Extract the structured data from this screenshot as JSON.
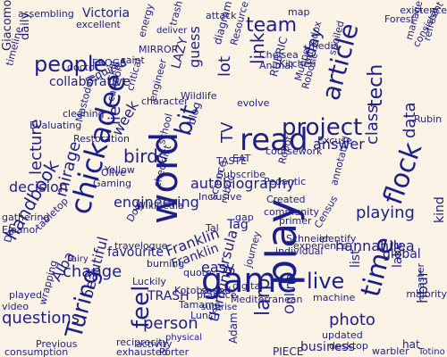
{
  "colors": {
    "background": "#fbf3e6",
    "text": "#1c1f8a"
  },
  "words": [
    "play",
    "game",
    "word",
    "read",
    "project",
    "Turing",
    "people",
    "chickadee",
    "time",
    "team",
    "article",
    "feel",
    "handbook",
    "autobiography",
    "flock",
    "birds",
    "bit",
    "larp",
    "live",
    "questions",
    "engineering",
    "Franklin",
    "change",
    "answer",
    "photo",
    "person",
    "thinking",
    "guess",
    "lot",
    "tech",
    "lecture",
    "mirage",
    "decision",
    "link",
    "week",
    "TV",
    "beautiful",
    "Alba",
    "favourite",
    "lie",
    "data",
    "class",
    "day",
    "playing",
    "easy",
    "Ursula",
    "hannahilea",
    "global",
    "kind",
    "hour",
    "Victoria",
    "Giacomo",
    "daily",
    "collaborative",
    "required",
    "LAZY",
    "lake",
    "Online",
    "business",
    "list",
    "PIECE",
    "TRASH",
    "Adam",
    "hat",
    "Tag",
    "Franklin",
    "assembling",
    "excellent",
    "energy",
    "trash",
    "deliver",
    "attack",
    "Forest",
    "map",
    "existence",
    "consistent",
    "manage",
    "refresh",
    "diagram",
    "science",
    "Chelsea",
    "Animal",
    "Kitchen",
    "Muppet",
    "spoiled",
    "orthodox",
    "Resource",
    "Robotic",
    "Wildlife",
    "Mediterranean",
    "Subscribe",
    "Pedantic",
    "blog",
    "checklist",
    "school",
    "skill",
    "saint",
    "RUBRIC",
    "Excuse",
    "EAT",
    "TASTE",
    "FROGS",
    "MIRROR",
    "Evaluating",
    "Restoration",
    "Mastodon",
    "Yellow",
    "Easter",
    "majority",
    "Totino",
    "consumption",
    "Dan",
    "Eleanor",
    "tabletop",
    "Gaming",
    "Fairy",
    "warbler",
    "Porter",
    "exhausted",
    "activity",
    "physical",
    "reciprocity",
    "Luckily",
    "travelogue",
    "burning",
    "quote",
    "media",
    "Wikipedia",
    "Dog",
    "cleaning",
    "Previous",
    "played",
    "video",
    "wrapping",
    "Olive",
    "Kotoba",
    "Tamamo",
    "Lunch",
    "Census",
    "gathering",
    "identify",
    "individual",
    "experience",
    "digital",
    "machine",
    "Schneier",
    "desktop",
    "updated",
    "journey",
    "gap",
    "Rubin",
    "doctor",
    "timeline",
    "Tal",
    "rubric",
    "coursework",
    "sound",
    "community",
    "annotated",
    "Robot",
    "primer",
    "Created",
    "Inclusive",
    "engineer",
    "character",
    "practice",
    "surprise",
    "critical",
    "cartoon",
    "evolve"
  ]
}
